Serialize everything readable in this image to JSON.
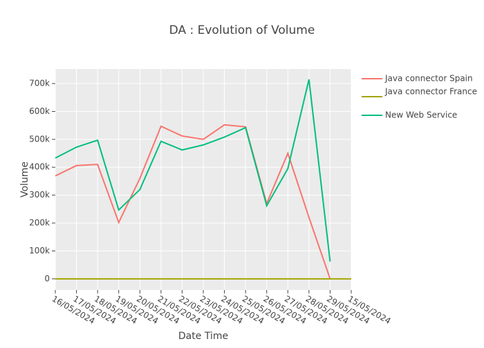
{
  "chart_data": {
    "type": "line",
    "title": "DA : Evolution of Volume",
    "x_label": "Date Time",
    "y_label": "Volume",
    "categories": [
      "16/05/2024",
      "17/05/2024",
      "18/05/2024",
      "19/05/2024",
      "20/05/2024",
      "21/05/2024",
      "22/05/2024",
      "23/05/2024",
      "24/05/2024",
      "25/05/2024",
      "26/05/2024",
      "27/05/2024",
      "28/05/2024",
      "29/05/2024",
      "15/05/2024"
    ],
    "series": [
      {
        "name": "Java connector Spain",
        "color": "#F8766D",
        "values": [
          369000,
          406000,
          410000,
          202000,
          360000,
          547000,
          512000,
          500000,
          552000,
          545000,
          270000,
          450000,
          220000,
          0,
          null
        ]
      },
      {
        "name": "Java connector France",
        "color": "#A3A500",
        "values": [
          0,
          0,
          0,
          0,
          0,
          0,
          0,
          0,
          0,
          0,
          0,
          0,
          0,
          0,
          0
        ]
      },
      {
        "name": "New Web Service",
        "color": "#00BF7D",
        "values": [
          433000,
          472000,
          497000,
          247000,
          320000,
          493000,
          462000,
          480000,
          508000,
          542000,
          262000,
          395000,
          715000,
          62000,
          null
        ]
      }
    ],
    "ylim": [
      -40000,
      752000
    ],
    "yticks": [
      0,
      {
        "value": 100000,
        "label": "100k"
      },
      {
        "value": 200000,
        "label": "200k"
      },
      {
        "value": 300000,
        "label": "300k"
      },
      {
        "value": 400000,
        "label": "400k"
      },
      {
        "value": 500000,
        "label": "500k"
      },
      {
        "value": 600000,
        "label": "600k"
      },
      {
        "value": 700000,
        "label": "700k"
      }
    ],
    "grid": true,
    "legend": "right"
  }
}
